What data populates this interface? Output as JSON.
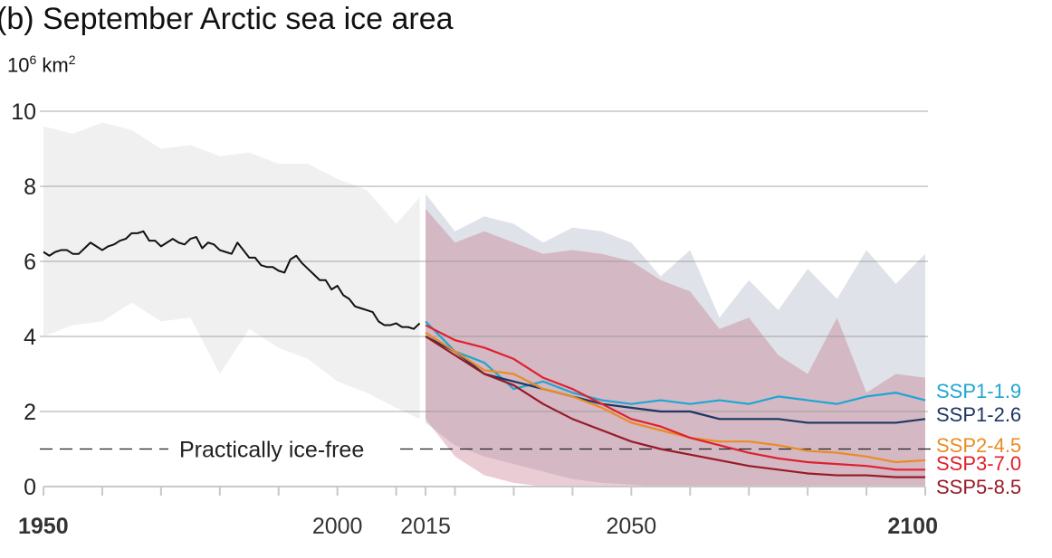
{
  "chart_data": {
    "type": "line",
    "title": "(b) September Arctic sea ice area",
    "ylabel_base": "10",
    "ylabel_exp": "6",
    "ylabel_unit": " km",
    "ylabel_unit_exp": "2",
    "xlim": [
      1950,
      2100
    ],
    "ylim": [
      0,
      10
    ],
    "yticks": [
      "0",
      "2",
      "4",
      "6",
      "8",
      "10"
    ],
    "xtick_labels": [
      {
        "value": 1950,
        "label": "1950",
        "bold": true
      },
      {
        "value": 2000,
        "label": "2000",
        "bold": false
      },
      {
        "value": 2015,
        "label": "2015",
        "bold": false
      },
      {
        "value": 2050,
        "label": "2050",
        "bold": false
      },
      {
        "value": 2100,
        "label": "2100",
        "bold": true
      }
    ],
    "grid": true,
    "threshold": {
      "value": 1,
      "label": "Practically ice-free"
    },
    "historical": {
      "color": "#111111",
      "x_start": 1950,
      "values": [
        6.25,
        6.15,
        6.25,
        6.3,
        6.3,
        6.2,
        6.2,
        6.35,
        6.5,
        6.4,
        6.3,
        6.4,
        6.45,
        6.55,
        6.6,
        6.75,
        6.75,
        6.8,
        6.55,
        6.55,
        6.4,
        6.5,
        6.6,
        6.5,
        6.45,
        6.6,
        6.65,
        6.35,
        6.5,
        6.45,
        6.3,
        6.25,
        6.2,
        6.5,
        6.3,
        6.1,
        6.1,
        5.9,
        5.85,
        5.85,
        5.75,
        5.7,
        6.05,
        6.15,
        5.95,
        5.8,
        5.65,
        5.5,
        5.5,
        5.25,
        5.35,
        5.1,
        5.0,
        4.8,
        4.75,
        4.7,
        4.65,
        4.4,
        4.3,
        4.3,
        4.35,
        4.25,
        4.25,
        4.2,
        4.35
      ],
      "range_color": "#f0f0f0",
      "range_x": [
        1950,
        1955,
        1960,
        1965,
        1970,
        1975,
        1980,
        1985,
        1990,
        1995,
        2000,
        2005,
        2010,
        2014
      ],
      "range_upper": [
        9.6,
        9.4,
        9.7,
        9.5,
        9.0,
        9.1,
        8.8,
        8.9,
        8.6,
        8.6,
        8.2,
        7.9,
        7.0,
        7.7
      ],
      "range_lower": [
        4.0,
        4.3,
        4.4,
        4.9,
        4.4,
        4.5,
        3.0,
        4.2,
        3.7,
        3.4,
        2.8,
        2.5,
        2.1,
        1.8
      ]
    },
    "ranges": [
      {
        "color": "#dfe2e8",
        "upper": [
          7.8,
          6.8,
          7.2,
          7.0,
          6.5,
          6.9,
          6.8,
          6.5,
          5.6,
          6.3,
          4.5,
          5.5,
          4.7,
          5.8,
          5.0,
          6.3,
          5.4,
          6.2
        ],
        "lower": [
          1.7,
          1.1,
          0.8,
          0.6,
          0.4,
          0.2,
          0.1,
          0.05,
          0,
          0,
          0,
          0,
          0,
          0,
          0,
          0,
          0,
          0
        ]
      },
      {
        "color": "rgba(190,100,125,0.33)",
        "upper": [
          7.4,
          6.5,
          6.8,
          6.5,
          6.2,
          6.3,
          6.2,
          6.0,
          5.5,
          5.2,
          4.2,
          4.5,
          3.5,
          3.0,
          4.5,
          2.5,
          3.0,
          2.9
        ],
        "lower": [
          1.8,
          0.8,
          0.3,
          0.1,
          0,
          0,
          0,
          0,
          0,
          0,
          0,
          0,
          0,
          0,
          0,
          0,
          0,
          0
        ]
      }
    ],
    "x": [
      2015,
      2020,
      2025,
      2030,
      2035,
      2040,
      2045,
      2050,
      2055,
      2060,
      2065,
      2070,
      2075,
      2080,
      2085,
      2090,
      2095,
      2100
    ],
    "series": [
      {
        "name": "SSP1-1.9",
        "color": "#1ea6d2",
        "values": [
          4.4,
          3.6,
          3.3,
          2.6,
          2.8,
          2.5,
          2.3,
          2.2,
          2.3,
          2.2,
          2.3,
          2.2,
          2.4,
          2.3,
          2.2,
          2.4,
          2.5,
          2.3
        ]
      },
      {
        "name": "SSP1-2.6",
        "color": "#1c3661",
        "values": [
          4.0,
          3.6,
          3.0,
          2.8,
          2.6,
          2.4,
          2.2,
          2.1,
          2.0,
          2.0,
          1.8,
          1.8,
          1.8,
          1.7,
          1.7,
          1.7,
          1.7,
          1.8
        ]
      },
      {
        "name": "SSP2-4.5",
        "color": "#ea8c22",
        "values": [
          4.1,
          3.6,
          3.1,
          3.0,
          2.6,
          2.4,
          2.1,
          1.7,
          1.5,
          1.3,
          1.2,
          1.2,
          1.1,
          0.95,
          0.9,
          0.8,
          0.65,
          0.7
        ]
      },
      {
        "name": "SSP3-7.0",
        "color": "#e0202e",
        "values": [
          4.3,
          3.9,
          3.7,
          3.4,
          2.9,
          2.6,
          2.2,
          1.8,
          1.6,
          1.3,
          1.1,
          0.9,
          0.75,
          0.65,
          0.6,
          0.55,
          0.45,
          0.45
        ]
      },
      {
        "name": "SSP5-8.5",
        "color": "#981a26",
        "values": [
          4.0,
          3.5,
          3.0,
          2.7,
          2.2,
          1.8,
          1.5,
          1.2,
          1.0,
          0.85,
          0.7,
          0.55,
          0.45,
          0.35,
          0.3,
          0.3,
          0.25,
          0.25
        ]
      }
    ]
  }
}
